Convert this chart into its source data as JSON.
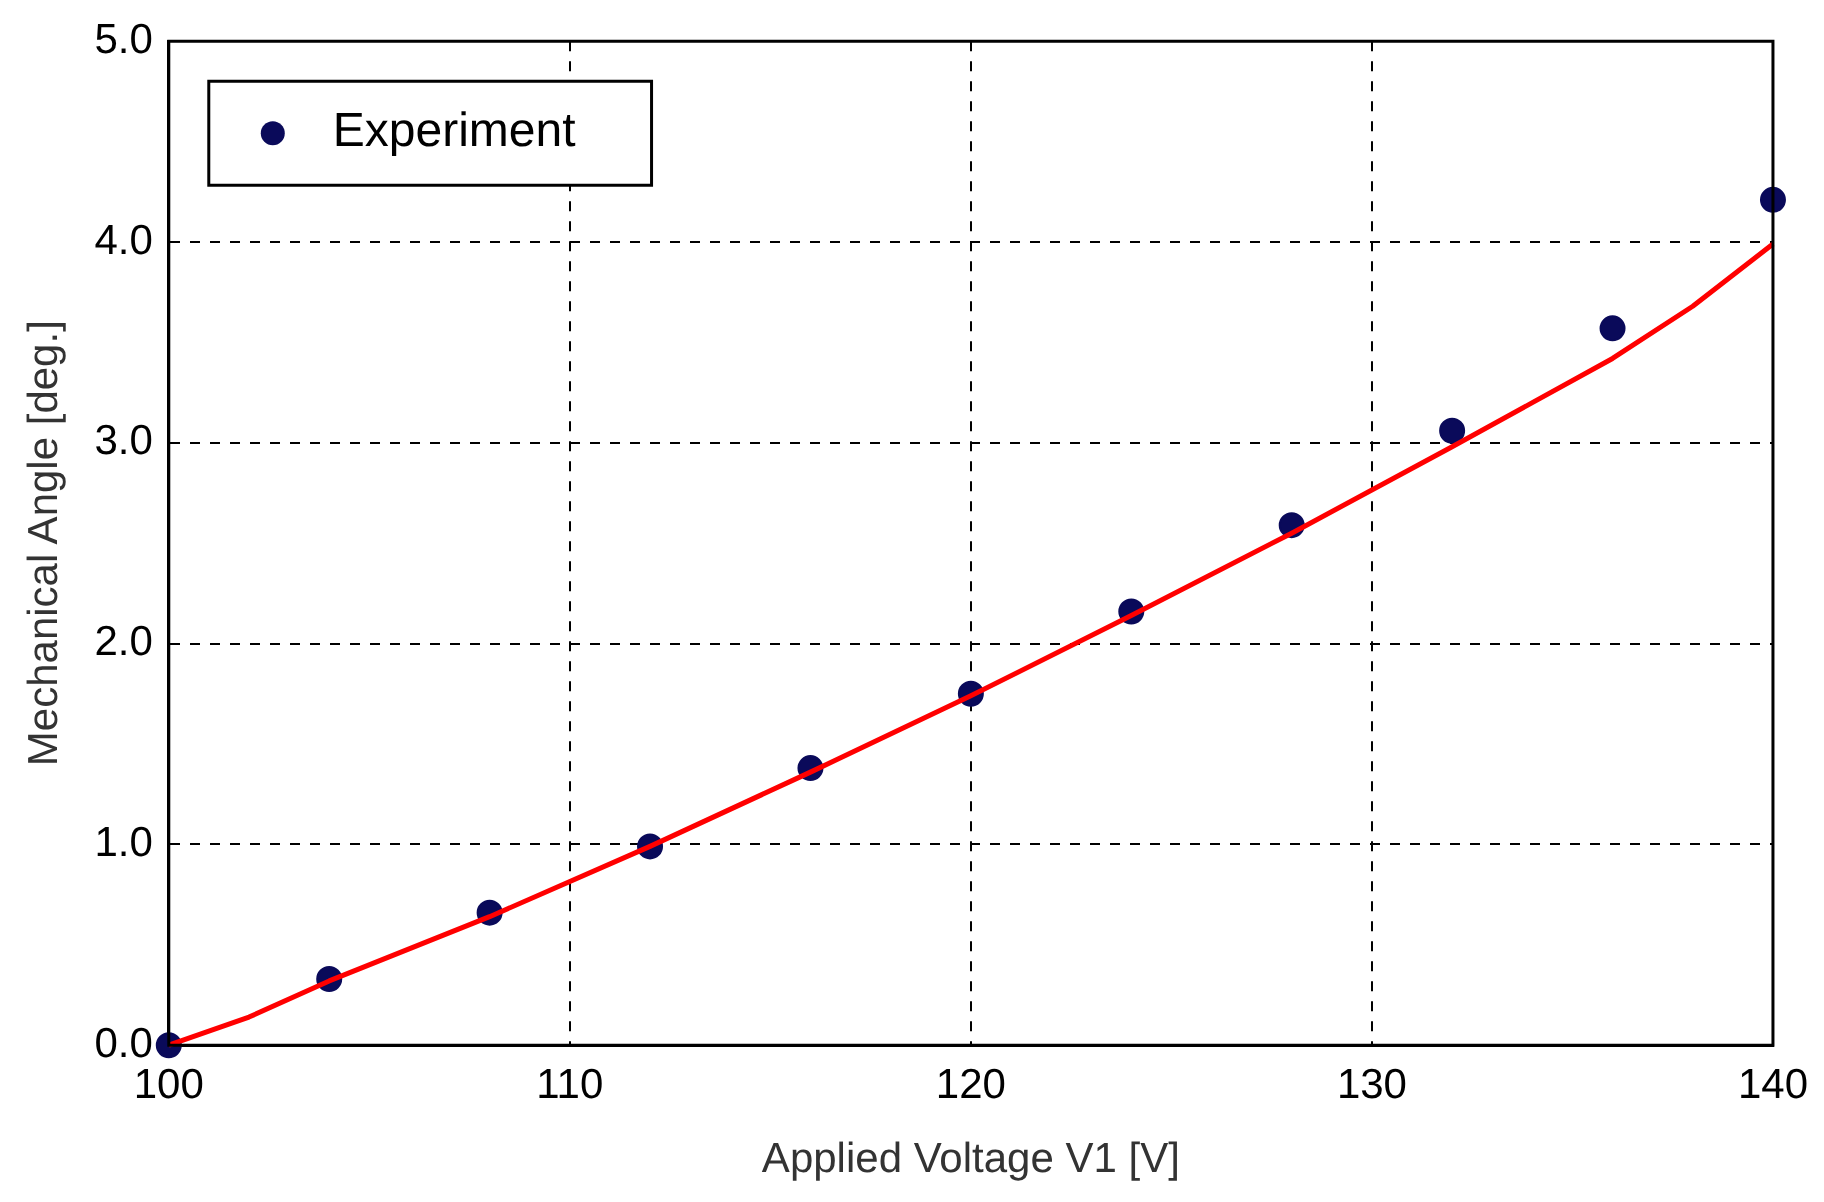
{
  "chart_data": {
    "type": "scatter",
    "xlabel": "Applied Voltage V1 [V]",
    "ylabel": "Mechanical Angle [deg.]",
    "xlim": [
      100,
      140
    ],
    "xticks": [
      100,
      110,
      120,
      130,
      140
    ],
    "ylim": [
      0,
      5
    ],
    "yticks": [
      {
        "value": 0,
        "label": "0.0"
      },
      {
        "value": 1,
        "label": "1.0"
      },
      {
        "value": 2,
        "label": "2.0"
      },
      {
        "value": 3,
        "label": "3.0"
      },
      {
        "value": 4,
        "label": "4.0"
      },
      {
        "value": 5,
        "label": "5.0"
      }
    ],
    "grid": true,
    "legend": "top left",
    "series": [
      {
        "name": "Experiment",
        "marker": "circle",
        "color": "#0a0a5a",
        "x": [
          100,
          104,
          108,
          112,
          116,
          120,
          124,
          128,
          132,
          136,
          140
        ],
        "values": [
          0,
          0.33,
          0.66,
          0.99,
          1.38,
          1.75,
          2.16,
          2.59,
          3.06,
          3.57,
          4.21
        ]
      },
      {
        "type": "line",
        "marker": "none",
        "color": "#ff0000",
        "x": [
          100,
          102,
          104,
          108,
          112,
          116,
          120,
          124,
          128,
          132,
          134,
          136,
          138,
          140
        ],
        "values": [
          0,
          0.14,
          0.32,
          0.64,
          0.99,
          1.36,
          1.74,
          2.14,
          2.55,
          2.98,
          3.2,
          3.42,
          3.68,
          3.99
        ]
      }
    ]
  }
}
